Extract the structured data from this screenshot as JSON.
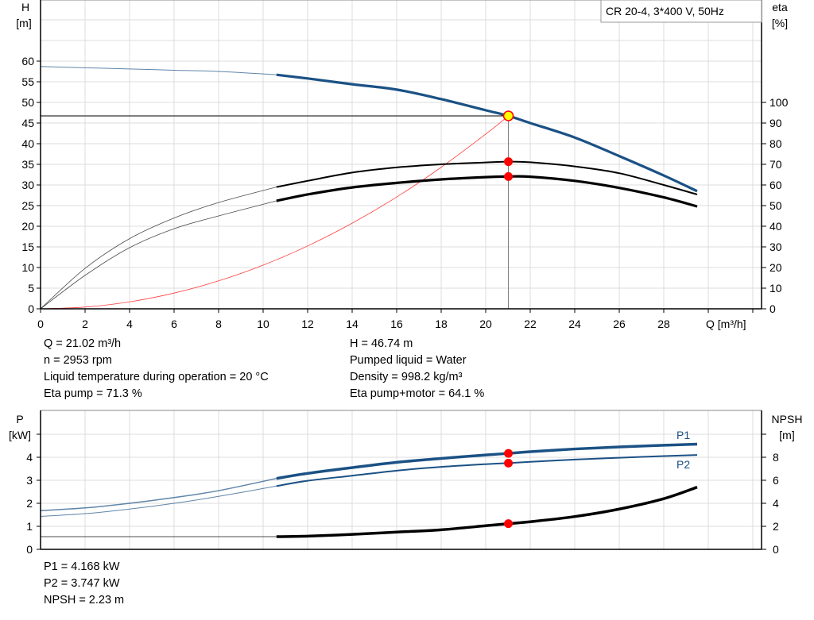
{
  "chart_data": [
    {
      "type": "line",
      "title": "CR 20-4, 3*400 V, 50Hz",
      "xlabel": "Q [m³/h]",
      "ylabel": "H\n[m]",
      "ylabel_left": [
        "H",
        "[m]"
      ],
      "ylabel_right": [
        "eta",
        "[%]"
      ],
      "xlim": [
        0,
        32
      ],
      "ylim_left": [
        0,
        75
      ],
      "ylim_right": [
        0,
        144
      ],
      "x_ticks": [
        0,
        2,
        4,
        6,
        8,
        10,
        12,
        14,
        16,
        18,
        20,
        22,
        24,
        26,
        28
      ],
      "y_ticks_left": [
        0,
        5,
        10,
        15,
        20,
        25,
        30,
        35,
        40,
        45,
        50,
        55,
        60
      ],
      "y_ticks_right": [
        0,
        10,
        20,
        30,
        40,
        50,
        60,
        70,
        80,
        90,
        100
      ],
      "grid": true,
      "legend_position": "top-right",
      "x": [
        0,
        2,
        4,
        6,
        8,
        10.6,
        12,
        14,
        16,
        18,
        20,
        21.02,
        22,
        24,
        26,
        28,
        29.5
      ],
      "series": [
        {
          "axis": "left",
          "color": "#1b5185",
          "values": [
            58.7,
            58.4,
            58.1,
            57.8,
            57.5,
            56.7,
            55.8,
            54.4,
            53.1,
            50.8,
            48.1,
            46.74,
            45.0,
            41.5,
            37.0,
            32.3,
            28.5
          ]
        },
        {
          "axis": "right",
          "color": "#000000",
          "values": [
            0,
            19.6,
            34,
            44,
            51.5,
            59,
            62,
            66,
            68.5,
            70,
            70.9,
            71.3,
            71,
            69,
            65.7,
            60,
            55.4
          ]
        },
        {
          "axis": "right",
          "color": "#000000",
          "values": [
            0,
            16.2,
            29.6,
            38.8,
            45,
            52.3,
            55.4,
            58.8,
            61,
            62.7,
            63.8,
            64.1,
            64,
            62,
            58.6,
            54,
            49.6
          ]
        }
      ],
      "system_curve": {
        "color": "#ff4040",
        "x": [
          0,
          2,
          4,
          6,
          8,
          10,
          12,
          14,
          16,
          18,
          20,
          21.02
        ],
        "values": [
          0,
          0.42,
          1.69,
          3.81,
          6.77,
          10.58,
          15.23,
          20.74,
          27.08,
          34.28,
          42.31,
          46.74
        ]
      },
      "operating_point": {
        "Q": 21.02,
        "H": 46.74,
        "eta_pump": 71.3,
        "eta_pump_motor": 64.1
      }
    },
    {
      "type": "line",
      "ylabel_left": [
        "P",
        "[kW]"
      ],
      "ylabel_right": [
        "NPSH",
        "[m]"
      ],
      "xlim": [
        0,
        32
      ],
      "ylim_left": [
        0,
        6
      ],
      "ylim_right": [
        0,
        12
      ],
      "y_ticks_left": [
        0,
        1,
        2,
        3,
        4
      ],
      "y_ticks_right": [
        0,
        2,
        4,
        6,
        8
      ],
      "grid": true,
      "x": [
        0,
        2,
        4,
        6,
        8,
        10.6,
        12,
        14,
        16,
        18,
        20,
        21.02,
        22,
        24,
        26,
        28,
        29.5
      ],
      "series": [
        {
          "name": "P1",
          "axis": "left",
          "color": "#1b5185",
          "values": [
            1.68,
            1.8,
            2.0,
            2.25,
            2.55,
            3.08,
            3.3,
            3.55,
            3.78,
            3.95,
            4.1,
            4.168,
            4.24,
            4.36,
            4.45,
            4.52,
            4.57
          ]
        },
        {
          "name": "P2",
          "axis": "left",
          "color": "#1b5185",
          "values": [
            1.43,
            1.55,
            1.75,
            2.0,
            2.3,
            2.75,
            2.98,
            3.2,
            3.42,
            3.58,
            3.7,
            3.747,
            3.8,
            3.9,
            3.98,
            4.05,
            4.1
          ]
        },
        {
          "axis": "right",
          "color": "#000000",
          "values": [
            1.1,
            1.1,
            1.1,
            1.1,
            1.1,
            1.1,
            1.15,
            1.3,
            1.5,
            1.7,
            2.05,
            2.23,
            2.4,
            2.85,
            3.5,
            4.4,
            5.4
          ]
        }
      ],
      "operating_point": {
        "Q": 21.02,
        "P1": 4.168,
        "P2": 3.747,
        "NPSH": 2.23
      }
    }
  ],
  "info_top": {
    "left": [
      "Q = 21.02 m³/h",
      "n = 2953 rpm",
      "Liquid temperature during operation = 20 °C",
      "Eta pump = 71.3 %"
    ],
    "right": [
      "H = 46.74 m",
      "Pumped liquid = Water",
      "Density = 998.2 kg/m³",
      "Eta pump+motor = 64.1 %"
    ]
  },
  "info_bottom": [
    "P1 = 4.168 kW",
    "P2 = 3.747 kW",
    "NPSH = 2.23 m"
  ],
  "colors": {
    "curve_blue": "#1b5185",
    "marker_red": "#ff0000",
    "marker_yellow": "#ffff00",
    "grid": "#dcdcdc"
  }
}
